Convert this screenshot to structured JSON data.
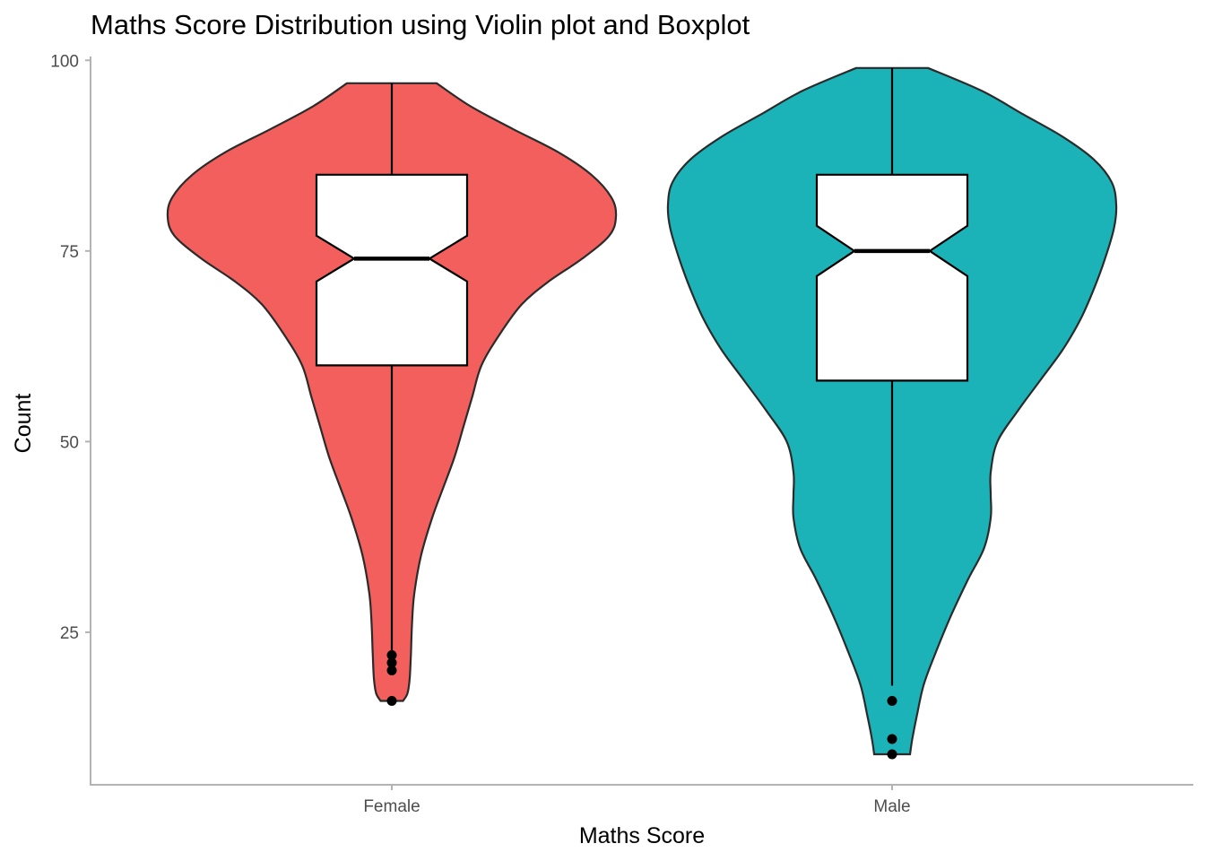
{
  "chart_data": {
    "type": "violin",
    "title": "Maths Score Distribution using Violin plot and Boxplot",
    "xlabel": "Maths Score",
    "ylabel": "Count",
    "ylim": [
      5,
      100.5
    ],
    "y_ticks": [
      25,
      50,
      75,
      100
    ],
    "categories": [
      "Female",
      "Male"
    ],
    "grid": false,
    "legend": "none",
    "series": [
      {
        "category": "Female",
        "color": "#F25F5C",
        "box": {
          "min": 22,
          "q1": 60,
          "median": 74,
          "q3": 85,
          "max": 97,
          "notch_low": 71,
          "notch_high": 77
        },
        "outliers": [
          22,
          21,
          20,
          16
        ],
        "violin": {
          "y": [
            16,
            17,
            19,
            22,
            26,
            30,
            35,
            40,
            44,
            48,
            52,
            56,
            60,
            64,
            68,
            71,
            74,
            77,
            79.5,
            82,
            85,
            88,
            91,
            94,
            97
          ],
          "width": [
            0.05,
            0.07,
            0.08,
            0.085,
            0.09,
            0.1,
            0.13,
            0.18,
            0.23,
            0.28,
            0.32,
            0.36,
            0.4,
            0.48,
            0.58,
            0.7,
            0.85,
            0.97,
            1.0,
            0.98,
            0.89,
            0.74,
            0.54,
            0.35,
            0.2
          ]
        }
      },
      {
        "category": "Male",
        "color": "#1BB3B8",
        "box": {
          "min": 18,
          "q1": 58,
          "median": 75,
          "q3": 85,
          "max": 99,
          "notch_low": 71.7,
          "notch_high": 78.3
        },
        "outliers": [
          16,
          11,
          9
        ],
        "violin": {
          "y": [
            9,
            11,
            14,
            18,
            22,
            27,
            32,
            36,
            40,
            43,
            46,
            50,
            54,
            58,
            62,
            66,
            70,
            74,
            78,
            81,
            84,
            87,
            90,
            93,
            96,
            99
          ],
          "width": [
            0.08,
            0.09,
            0.11,
            0.14,
            0.19,
            0.26,
            0.34,
            0.41,
            0.44,
            0.44,
            0.44,
            0.47,
            0.56,
            0.66,
            0.76,
            0.84,
            0.9,
            0.95,
            0.99,
            1.0,
            0.98,
            0.9,
            0.76,
            0.58,
            0.4,
            0.16
          ]
        }
      }
    ]
  }
}
